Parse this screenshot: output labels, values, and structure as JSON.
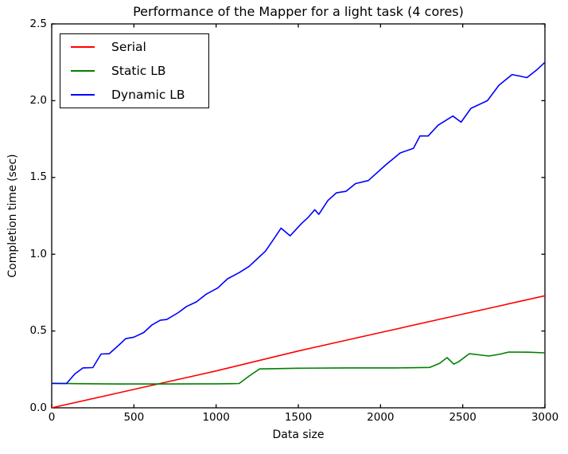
{
  "figure": {
    "background": "#ffffff",
    "axes_color": "#000000"
  },
  "chart_data": {
    "type": "line",
    "title": "Performance of the Mapper for a light task (4 cores)",
    "xlabel": "Data size",
    "ylabel": "Completion time (sec)",
    "xlim": [
      0,
      3000
    ],
    "ylim": [
      0,
      2.5
    ],
    "grid": false,
    "legend_position": "upper left",
    "x_ticks": [
      0,
      500,
      1000,
      1500,
      2000,
      2500,
      3000
    ],
    "x_tick_labels": [
      "0",
      "500",
      "1000",
      "1500",
      "2000",
      "2500",
      "3000"
    ],
    "y_ticks": [
      0,
      0.5,
      1.0,
      1.5,
      2.0,
      2.5
    ],
    "y_tick_labels": [
      "0.0",
      "0.5",
      "1.0",
      "1.5",
      "2.0",
      "2.5"
    ],
    "series": [
      {
        "name": "Serial",
        "color": "#ff0000",
        "x": [
          0,
          500,
          1000,
          1500,
          2000,
          2500,
          3000
        ],
        "y": [
          0,
          0.12,
          0.24,
          0.37,
          0.49,
          0.61,
          0.73
        ]
      },
      {
        "name": "Static LB",
        "color": "#008000",
        "x": [
          0,
          150,
          400,
          700,
          1000,
          1100,
          1140,
          1205,
          1265,
          1500,
          1800,
          2100,
          2300,
          2360,
          2405,
          2445,
          2475,
          2540,
          2600,
          2660,
          2730,
          2780,
          2900,
          3000
        ],
        "y": [
          0.16,
          0.157,
          0.155,
          0.155,
          0.156,
          0.157,
          0.158,
          0.21,
          0.253,
          0.258,
          0.26,
          0.26,
          0.263,
          0.29,
          0.327,
          0.285,
          0.3,
          0.352,
          0.345,
          0.337,
          0.35,
          0.363,
          0.362,
          0.358
        ]
      },
      {
        "name": "Dynamic LB",
        "color": "#0000ff",
        "x": [
          0,
          90,
          140,
          190,
          250,
          300,
          350,
          410,
          450,
          500,
          560,
          610,
          660,
          700,
          770,
          820,
          880,
          940,
          1010,
          1070,
          1140,
          1200,
          1250,
          1300,
          1345,
          1395,
          1450,
          1520,
          1560,
          1600,
          1625,
          1680,
          1732,
          1790,
          1848,
          1926,
          2030,
          2120,
          2200,
          2240,
          2290,
          2350,
          2440,
          2490,
          2550,
          2650,
          2720,
          2800,
          2850,
          2890,
          2950,
          3000
        ],
        "y": [
          0.158,
          0.158,
          0.22,
          0.26,
          0.262,
          0.35,
          0.352,
          0.41,
          0.45,
          0.46,
          0.49,
          0.54,
          0.57,
          0.575,
          0.62,
          0.66,
          0.69,
          0.74,
          0.78,
          0.84,
          0.88,
          0.92,
          0.97,
          1.02,
          1.09,
          1.17,
          1.12,
          1.2,
          1.24,
          1.29,
          1.26,
          1.35,
          1.4,
          1.41,
          1.46,
          1.48,
          1.58,
          1.66,
          1.69,
          1.77,
          1.77,
          1.84,
          1.9,
          1.86,
          1.95,
          2.0,
          2.1,
          2.17,
          2.16,
          2.15,
          2.2,
          2.25
        ]
      }
    ]
  }
}
